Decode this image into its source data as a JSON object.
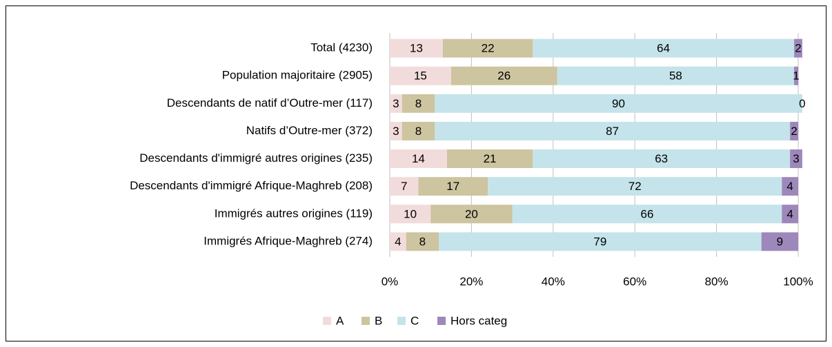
{
  "chart_data": {
    "type": "stacked_bar",
    "orientation": "horizontal",
    "categories": [
      "Total (4230)",
      "Population majoritaire (2905)",
      "Descendants de natif d’Outre-mer (117)",
      "Natifs d’Outre-mer (372)",
      "Descendants d'immigré autres origines (235)",
      "Descendants d'immigré Afrique-Maghreb (208)",
      "Immigrés autres origines (119)",
      "Immigrés Afrique-Maghreb (274)"
    ],
    "series": [
      {
        "name": "A",
        "color": "#f2dcdb",
        "values": [
          13,
          15,
          3,
          3,
          14,
          7,
          10,
          4
        ]
      },
      {
        "name": "B",
        "color": "#cdc4a0",
        "values": [
          22,
          26,
          8,
          8,
          21,
          17,
          20,
          8
        ]
      },
      {
        "name": "C",
        "color": "#c4e3ea",
        "values": [
          64,
          58,
          90,
          87,
          63,
          72,
          66,
          79
        ]
      },
      {
        "name": "Hors categ",
        "color": "#9d87bb",
        "values": [
          2,
          1,
          0,
          2,
          3,
          4,
          4,
          9
        ]
      }
    ],
    "xlim": [
      0,
      100
    ],
    "xticks": [
      {
        "value": 0,
        "label": "0%"
      },
      {
        "value": 20,
        "label": "20%"
      },
      {
        "value": 40,
        "label": "40%"
      },
      {
        "value": 60,
        "label": "60%"
      },
      {
        "value": 80,
        "label": "80%"
      },
      {
        "value": 100,
        "label": "100%"
      }
    ],
    "grid": true,
    "legend": "bottom"
  }
}
